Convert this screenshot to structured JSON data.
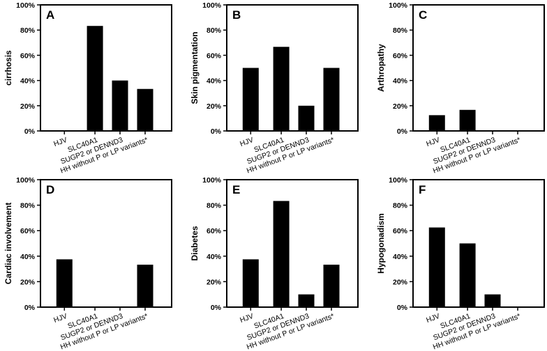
{
  "chart_data": [
    {
      "type": "bar",
      "panel": "A",
      "ylabel": "cirrhosis",
      "categories": [
        "HJV",
        "SLC40A1",
        "SUGP2 or DENND3",
        "HH without P or LP variants*"
      ],
      "values": [
        0,
        83.3,
        40,
        33.3
      ],
      "ylim": [
        0,
        100
      ],
      "yticks": [
        "0%",
        "20%",
        "40%",
        "60%",
        "80%",
        "100%"
      ]
    },
    {
      "type": "bar",
      "panel": "B",
      "ylabel": "Skin pigmentation",
      "categories": [
        "HJV",
        "SLC40A1",
        "SUGP2 or DENND3",
        "HH without P or LP variants*"
      ],
      "values": [
        50,
        66.7,
        20,
        50
      ],
      "ylim": [
        0,
        100
      ],
      "yticks": [
        "0%",
        "20%",
        "40%",
        "60%",
        "80%",
        "100%"
      ]
    },
    {
      "type": "bar",
      "panel": "C",
      "ylabel": "Arthropathy",
      "categories": [
        "HJV",
        "SLC40A1",
        "SUGP2 or DENND3",
        "HH without P or LP variants*"
      ],
      "values": [
        12.5,
        16.7,
        0,
        0
      ],
      "ylim": [
        0,
        100
      ],
      "yticks": [
        "0%",
        "20%",
        "40%",
        "60%",
        "80%",
        "100%"
      ]
    },
    {
      "type": "bar",
      "panel": "D",
      "ylabel": "Cardiac involvement",
      "categories": [
        "HJV",
        "SLC40A1",
        "SUGP2 or DENND3",
        "HH without P or LP variants*"
      ],
      "values": [
        37.5,
        0,
        0,
        33.3
      ],
      "ylim": [
        0,
        100
      ],
      "yticks": [
        "0%",
        "20%",
        "40%",
        "60%",
        "80%",
        "100%"
      ]
    },
    {
      "type": "bar",
      "panel": "E",
      "ylabel": "Diabetes",
      "categories": [
        "HJV",
        "SLC40A1",
        "SUGP2 or DENND3",
        "HH without P or LP variants*"
      ],
      "values": [
        37.5,
        83.3,
        10,
        33.3
      ],
      "ylim": [
        0,
        100
      ],
      "yticks": [
        "0%",
        "20%",
        "40%",
        "60%",
        "80%",
        "100%"
      ]
    },
    {
      "type": "bar",
      "panel": "F",
      "ylabel": "Hypogonadism",
      "categories": [
        "HJV",
        "SLC40A1",
        "SUGP2 or DENND3",
        "HH without P or LP variants*"
      ],
      "values": [
        62.5,
        50,
        10,
        0
      ],
      "ylim": [
        0,
        100
      ],
      "yticks": [
        "0%",
        "20%",
        "40%",
        "60%",
        "80%",
        "100%"
      ]
    }
  ],
  "colors": {
    "bar": "#000000",
    "frame": "#000000",
    "background": "#ffffff"
  }
}
